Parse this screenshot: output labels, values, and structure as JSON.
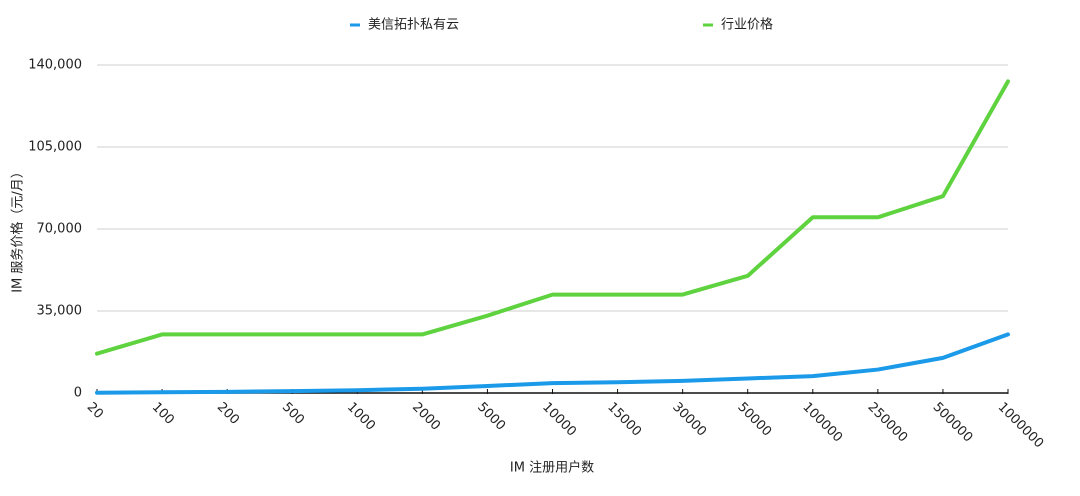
{
  "chart_data": {
    "type": "line",
    "x_label": "IM 注册用户数",
    "y_label": "IM 服务价格（元/月）",
    "categories": [
      "20",
      "100",
      "200",
      "500",
      "1000",
      "2000",
      "5000",
      "10000",
      "15000",
      "30000",
      "50000",
      "100000",
      "250000",
      "500000",
      "1000000"
    ],
    "series": [
      {
        "name": "美信拓扑私有云",
        "color": "#1a9ae8",
        "values": [
          100,
          300,
          500,
          800,
          1200,
          1800,
          3000,
          4200,
          4600,
          5200,
          6200,
          7200,
          10000,
          15000,
          25000
        ]
      },
      {
        "name": "行业价格",
        "color": "#5fd33f",
        "values": [
          16800,
          25000,
          25000,
          25000,
          25000,
          25000,
          33000,
          42000,
          42000,
          42000,
          50000,
          75000,
          75000,
          84000,
          133000
        ]
      }
    ],
    "ylim": [
      0,
      140000
    ],
    "yticks": [
      0,
      {
        "value": 35000,
        "label": "35,000"
      },
      {
        "value": 70000,
        "label": "70,000"
      },
      {
        "value": 105000,
        "label": "105,000"
      },
      {
        "value": 140000,
        "label": "140,000"
      }
    ],
    "grid": true,
    "legend": "top"
  }
}
